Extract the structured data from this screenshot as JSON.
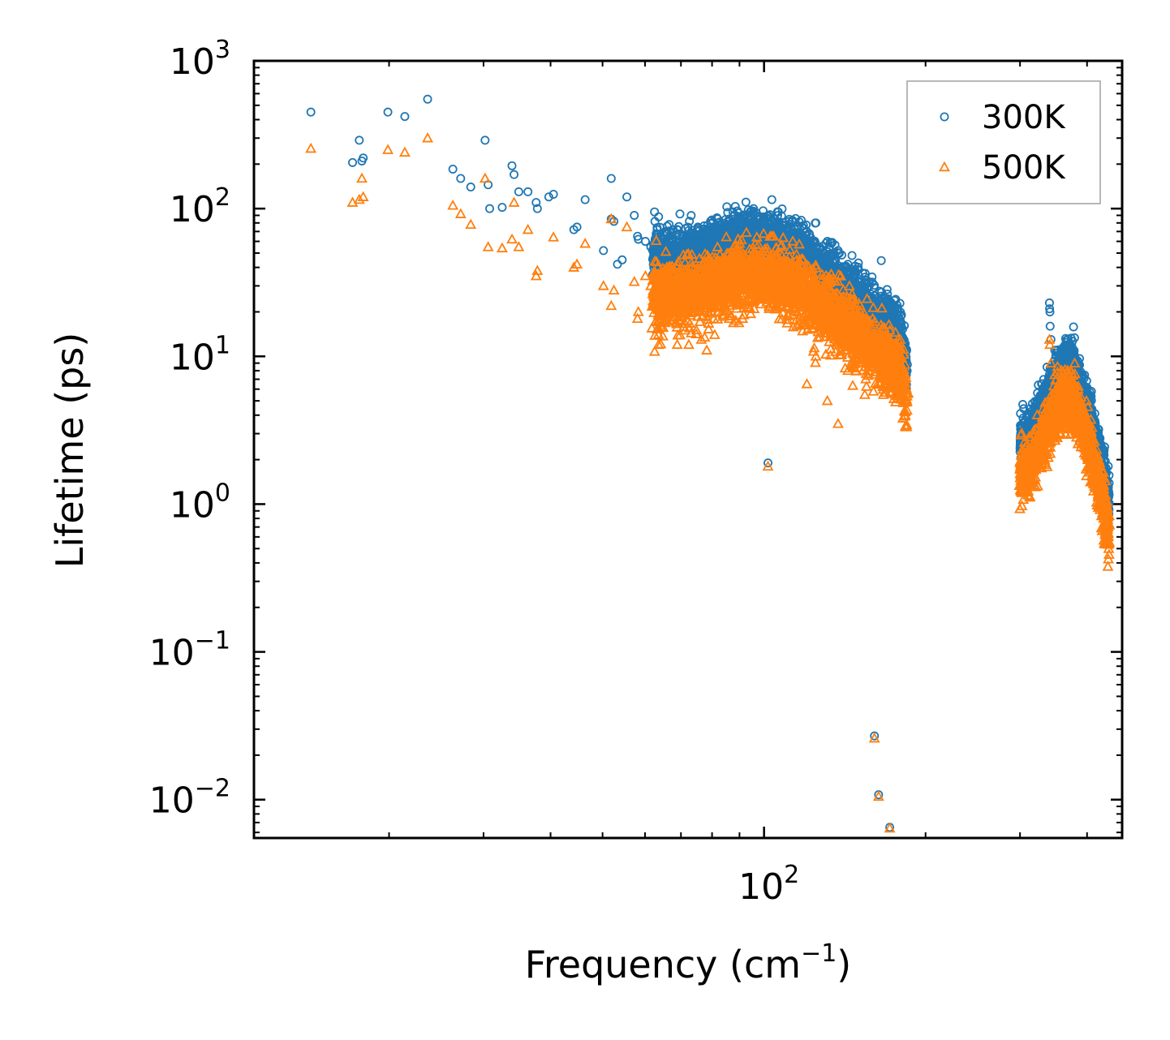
{
  "chart_data": {
    "type": "scatter",
    "title": "",
    "xlabel": "Frequency (cm",
    "xlabel_sup": "−1",
    "xlabel_tail": ")",
    "ylabel": "Lifetime (ps)",
    "xscale": "log",
    "yscale": "log",
    "xlim": [
      11.2,
      465
    ],
    "ylim": [
      0.0055,
      1000
    ],
    "x_major_ticks": [
      {
        "value": 100,
        "base": "10",
        "exp": "2"
      }
    ],
    "y_major_ticks": [
      {
        "value": 0.01,
        "base": "10",
        "exp": "−2"
      },
      {
        "value": 0.1,
        "base": "10",
        "exp": "−1"
      },
      {
        "value": 1,
        "base": "10",
        "exp": "0"
      },
      {
        "value": 10,
        "base": "10",
        "exp": "1"
      },
      {
        "value": 100,
        "base": "10",
        "exp": "2"
      },
      {
        "value": 1000,
        "base": "10",
        "exp": "3"
      }
    ],
    "legend_position": "top-right",
    "series": [
      {
        "name": "300K",
        "marker": "circle",
        "color": "#1f77b4",
        "points": [
          [
            14.3,
            450
          ],
          [
            17.1,
            205
          ],
          [
            17.6,
            290
          ],
          [
            17.8,
            210
          ],
          [
            17.9,
            220
          ],
          [
            19.9,
            450
          ],
          [
            21.4,
            420
          ],
          [
            23.6,
            550
          ],
          [
            26.3,
            185
          ],
          [
            27.2,
            160
          ],
          [
            28.4,
            140
          ],
          [
            30.2,
            290
          ],
          [
            30.6,
            145
          ],
          [
            30.8,
            100
          ],
          [
            32.5,
            102
          ],
          [
            33.9,
            195
          ],
          [
            34.2,
            170
          ],
          [
            34.9,
            130
          ],
          [
            36.3,
            130
          ],
          [
            37.6,
            110
          ],
          [
            37.8,
            100
          ],
          [
            39.7,
            120
          ],
          [
            40.5,
            125
          ],
          [
            44.2,
            72
          ],
          [
            44.8,
            75
          ],
          [
            46.4,
            115
          ],
          [
            50.2,
            52
          ],
          [
            51.9,
            160
          ],
          [
            51.9,
            85
          ],
          [
            52.5,
            82
          ],
          [
            53.3,
            42
          ],
          [
            54.4,
            45
          ],
          [
            55.5,
            120
          ],
          [
            57.3,
            90
          ],
          [
            58.1,
            65
          ],
          [
            58.3,
            62
          ],
          [
            60.1,
            60
          ],
          [
            61.5,
            55
          ],
          [
            62.6,
            82
          ],
          [
            62.5,
            95
          ],
          [
            63.6,
            88
          ],
          [
            65.4,
            70
          ],
          [
            66.4,
            62
          ],
          [
            67.7,
            72
          ],
          [
            68.9,
            58
          ],
          [
            69.7,
            92
          ],
          [
            71.2,
            50
          ],
          [
            72.4,
            66
          ],
          [
            75.3,
            75
          ],
          [
            76.4,
            62
          ],
          [
            78.2,
            70
          ],
          [
            80.9,
            52
          ],
          [
            82.3,
            80
          ],
          [
            84.6,
            67
          ],
          [
            86.1,
            85
          ],
          [
            87.5,
            95
          ],
          [
            91.2,
            72
          ],
          [
            93.5,
            98
          ],
          [
            95.6,
            100
          ],
          [
            98.1,
            70
          ],
          [
            101.7,
            1.9
          ],
          [
            103.4,
            115
          ],
          [
            106.3,
            95
          ],
          [
            111.4,
            82
          ],
          [
            115.5,
            75
          ],
          [
            120.2,
            70
          ],
          [
            124.9,
            80
          ],
          [
            131.2,
            60
          ],
          [
            137.4,
            52
          ],
          [
            143.3,
            42
          ],
          [
            154.1,
            33
          ],
          [
            160.6,
            0.027
          ],
          [
            163.5,
            0.0108
          ],
          [
            171.5,
            0.0065
          ],
          [
            300.8,
            3.0
          ],
          [
            340.4,
            23
          ],
          [
            340.6,
            21
          ],
          [
            341.1,
            20
          ],
          [
            341.4,
            16
          ],
          [
            342.6,
            13
          ],
          [
            348.2,
            11
          ],
          [
            363.5,
            11.5
          ],
          [
            368.5,
            12
          ],
          [
            380.2,
            9.2
          ]
        ]
      },
      {
        "name": "500K",
        "marker": "triangle",
        "color": "#ff7f0e",
        "points": [
          [
            14.3,
            255
          ],
          [
            17.1,
            110
          ],
          [
            17.6,
            115
          ],
          [
            17.8,
            160
          ],
          [
            17.9,
            120
          ],
          [
            19.9,
            250
          ],
          [
            21.4,
            240
          ],
          [
            23.6,
            300
          ],
          [
            26.3,
            105
          ],
          [
            27.2,
            92
          ],
          [
            28.4,
            78
          ],
          [
            30.2,
            160
          ],
          [
            30.6,
            55
          ],
          [
            32.5,
            54
          ],
          [
            33.9,
            62
          ],
          [
            34.2,
            110
          ],
          [
            34.9,
            55
          ],
          [
            36.3,
            72
          ],
          [
            37.8,
            38
          ],
          [
            37.6,
            35
          ],
          [
            40.5,
            64
          ],
          [
            44.2,
            40
          ],
          [
            44.8,
            42
          ],
          [
            46.4,
            58
          ],
          [
            50.2,
            30
          ],
          [
            51.9,
            85
          ],
          [
            51.9,
            22
          ],
          [
            52.5,
            28
          ],
          [
            55.5,
            75
          ],
          [
            57.3,
            32
          ],
          [
            58.1,
            18
          ],
          [
            58.3,
            20
          ],
          [
            60.1,
            35
          ],
          [
            61.5,
            30
          ],
          [
            62.6,
            25
          ],
          [
            62.5,
            22
          ],
          [
            63.6,
            12
          ],
          [
            65.4,
            24
          ],
          [
            66.4,
            40
          ],
          [
            67.7,
            30
          ],
          [
            68.9,
            12
          ],
          [
            69.7,
            20
          ],
          [
            71.2,
            15
          ],
          [
            72.4,
            12
          ],
          [
            75.3,
            20
          ],
          [
            76.4,
            13
          ],
          [
            78.2,
            11
          ],
          [
            80.9,
            14
          ],
          [
            82.3,
            20
          ],
          [
            84.6,
            22
          ],
          [
            86.1,
            18
          ],
          [
            87.5,
            30
          ],
          [
            91.2,
            18
          ],
          [
            93.5,
            26
          ],
          [
            95.6,
            40
          ],
          [
            98.1,
            35
          ],
          [
            101.7,
            1.8
          ],
          [
            103.4,
            65
          ],
          [
            106.3,
            38
          ],
          [
            111.4,
            30
          ],
          [
            120.2,
            6.5
          ],
          [
            124.9,
            10
          ],
          [
            131.2,
            5.0
          ],
          [
            137.4,
            3.5
          ],
          [
            143.3,
            8.0
          ],
          [
            154.1,
            5.5
          ],
          [
            160.6,
            0.026
          ],
          [
            163.5,
            0.0105
          ],
          [
            171.5,
            0.0064
          ],
          [
            300.8,
            1.6
          ],
          [
            319.4,
            1.35
          ],
          [
            340.4,
            13
          ],
          [
            341.1,
            12
          ],
          [
            342.6,
            9
          ],
          [
            348.2,
            7.5
          ],
          [
            368.5,
            6.5
          ]
        ]
      }
    ]
  }
}
